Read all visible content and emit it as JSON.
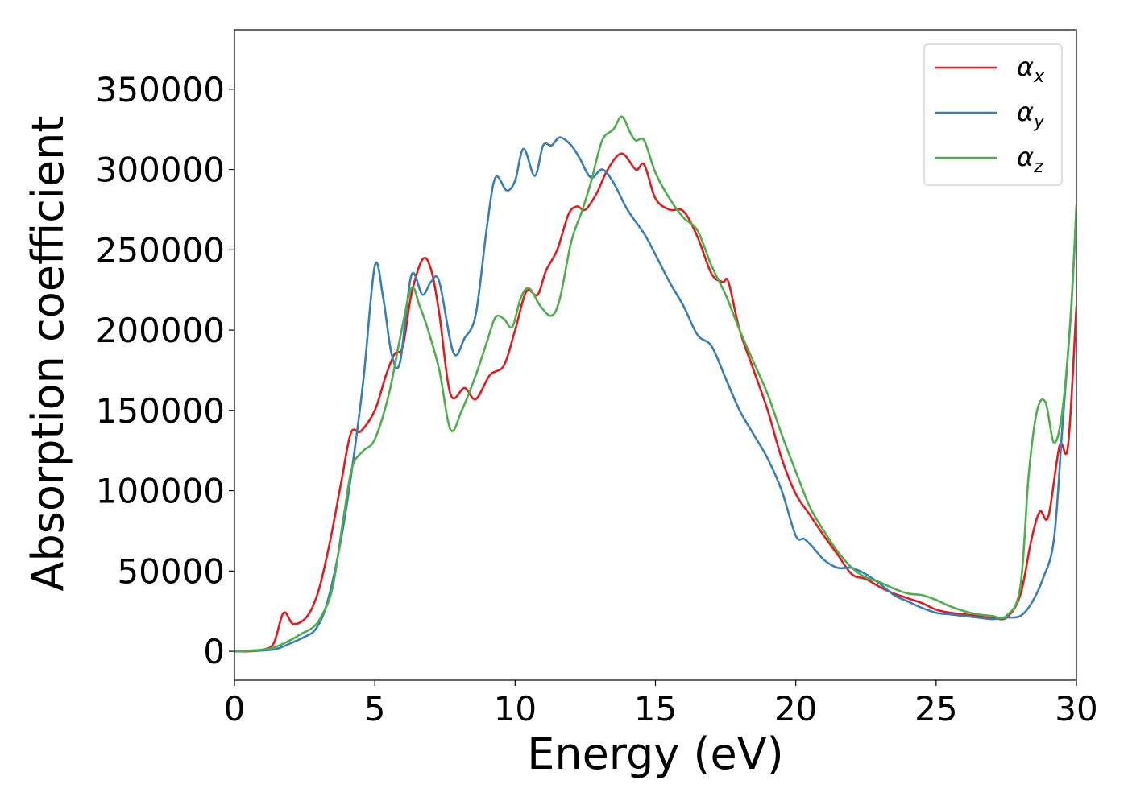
{
  "chart_data": {
    "type": "line",
    "title": "",
    "xlabel": "Energy (eV)",
    "ylabel": "Absorption coefficient",
    "xlim": [
      0,
      30
    ],
    "ylim": [
      -18000,
      387000
    ],
    "xticks": [
      0,
      5,
      10,
      15,
      20,
      25,
      30
    ],
    "yticks": [
      0,
      50000,
      100000,
      150000,
      200000,
      250000,
      300000,
      350000
    ],
    "grid": false,
    "legend_position": "top-right",
    "colors": {
      "alpha_x": "#e41a1c",
      "alpha_y": "#377eb8",
      "alpha_z": "#4daf4a"
    },
    "legend": [
      {
        "key": "alpha_x",
        "symbol": "α",
        "subscript": "x"
      },
      {
        "key": "alpha_y",
        "symbol": "α",
        "subscript": "y"
      },
      {
        "key": "alpha_z",
        "symbol": "α",
        "subscript": "z"
      }
    ],
    "series": [
      {
        "key": "alpha_x",
        "name": "αx",
        "points": [
          [
            0,
            0
          ],
          [
            0.5,
            0
          ],
          [
            1,
            1000
          ],
          [
            1.4,
            5000
          ],
          [
            1.75,
            24000
          ],
          [
            2.1,
            17000
          ],
          [
            2.6,
            22000
          ],
          [
            3,
            38000
          ],
          [
            3.4,
            68000
          ],
          [
            3.8,
            105000
          ],
          [
            4.15,
            136000
          ],
          [
            4.5,
            137000
          ],
          [
            5.0,
            150000
          ],
          [
            5.4,
            172000
          ],
          [
            5.7,
            185000
          ],
          [
            6.0,
            190000
          ],
          [
            6.3,
            222000
          ],
          [
            6.7,
            244000
          ],
          [
            7.0,
            238000
          ],
          [
            7.3,
            210000
          ],
          [
            7.7,
            160000
          ],
          [
            8.2,
            164000
          ],
          [
            8.6,
            157000
          ],
          [
            9.1,
            172000
          ],
          [
            9.6,
            178000
          ],
          [
            10.0,
            200000
          ],
          [
            10.4,
            224000
          ],
          [
            10.8,
            222000
          ],
          [
            11.1,
            237000
          ],
          [
            11.5,
            250000
          ],
          [
            11.9,
            272000
          ],
          [
            12.2,
            277000
          ],
          [
            12.5,
            275000
          ],
          [
            12.9,
            285000
          ],
          [
            13.3,
            300000
          ],
          [
            13.8,
            310000
          ],
          [
            14.3,
            300000
          ],
          [
            14.6,
            303000
          ],
          [
            15.0,
            282000
          ],
          [
            15.5,
            275000
          ],
          [
            16.0,
            274000
          ],
          [
            16.5,
            258000
          ],
          [
            17.0,
            235000
          ],
          [
            17.4,
            230000
          ],
          [
            17.6,
            230000
          ],
          [
            18.0,
            200000
          ],
          [
            18.5,
            175000
          ],
          [
            19.0,
            150000
          ],
          [
            19.5,
            120000
          ],
          [
            20.0,
            98000
          ],
          [
            20.5,
            85000
          ],
          [
            21.0,
            72000
          ],
          [
            21.5,
            60000
          ],
          [
            22.0,
            48000
          ],
          [
            22.5,
            45000
          ],
          [
            23.0,
            40000
          ],
          [
            23.5,
            36000
          ],
          [
            24.0,
            33000
          ],
          [
            24.5,
            30000
          ],
          [
            25.0,
            26000
          ],
          [
            25.5,
            24000
          ],
          [
            26.0,
            23000
          ],
          [
            26.5,
            22000
          ],
          [
            27.0,
            21000
          ],
          [
            27.5,
            21000
          ],
          [
            28.0,
            35000
          ],
          [
            28.4,
            70000
          ],
          [
            28.7,
            87000
          ],
          [
            29.0,
            84000
          ],
          [
            29.4,
            128000
          ],
          [
            29.7,
            128000
          ],
          [
            30,
            215000
          ]
        ]
      },
      {
        "key": "alpha_y",
        "name": "αy",
        "points": [
          [
            0,
            0
          ],
          [
            1,
            500
          ],
          [
            1.5,
            1500
          ],
          [
            2,
            5000
          ],
          [
            2.5,
            9000
          ],
          [
            2.9,
            14000
          ],
          [
            3.3,
            30000
          ],
          [
            3.8,
            70000
          ],
          [
            4.2,
            115000
          ],
          [
            4.6,
            170000
          ],
          [
            5.0,
            240000
          ],
          [
            5.3,
            220000
          ],
          [
            5.6,
            185000
          ],
          [
            5.9,
            180000
          ],
          [
            6.3,
            234000
          ],
          [
            6.7,
            222000
          ],
          [
            7.0,
            230000
          ],
          [
            7.3,
            230000
          ],
          [
            7.8,
            186000
          ],
          [
            8.2,
            195000
          ],
          [
            8.6,
            210000
          ],
          [
            9.0,
            265000
          ],
          [
            9.3,
            295000
          ],
          [
            9.7,
            287000
          ],
          [
            10.0,
            293000
          ],
          [
            10.3,
            313000
          ],
          [
            10.7,
            296000
          ],
          [
            11.0,
            315000
          ],
          [
            11.3,
            315000
          ],
          [
            11.6,
            320000
          ],
          [
            12.0,
            315000
          ],
          [
            12.3,
            307000
          ],
          [
            12.7,
            295000
          ],
          [
            13.1,
            300000
          ],
          [
            13.5,
            292000
          ],
          [
            14.0,
            275000
          ],
          [
            14.6,
            260000
          ],
          [
            15.0,
            247000
          ],
          [
            15.5,
            230000
          ],
          [
            16.0,
            215000
          ],
          [
            16.5,
            197000
          ],
          [
            17.0,
            190000
          ],
          [
            17.5,
            170000
          ],
          [
            18.0,
            150000
          ],
          [
            18.5,
            135000
          ],
          [
            19.0,
            120000
          ],
          [
            19.5,
            100000
          ],
          [
            20.0,
            72000
          ],
          [
            20.3,
            70000
          ],
          [
            20.6,
            65000
          ],
          [
            21.0,
            57000
          ],
          [
            21.5,
            52000
          ],
          [
            22.0,
            52000
          ],
          [
            22.5,
            48000
          ],
          [
            23.0,
            42000
          ],
          [
            23.5,
            35000
          ],
          [
            24.0,
            31000
          ],
          [
            24.5,
            27000
          ],
          [
            25.0,
            24000
          ],
          [
            25.5,
            23000
          ],
          [
            26.0,
            22000
          ],
          [
            26.5,
            21000
          ],
          [
            27.0,
            20000
          ],
          [
            27.5,
            21000
          ],
          [
            28.0,
            22000
          ],
          [
            28.4,
            30000
          ],
          [
            28.8,
            45000
          ],
          [
            29.2,
            70000
          ],
          [
            29.5,
            140000
          ],
          [
            29.8,
            210000
          ],
          [
            30,
            275000
          ]
        ]
      },
      {
        "key": "alpha_z",
        "name": "αz",
        "points": [
          [
            0,
            0
          ],
          [
            1,
            1000
          ],
          [
            1.5,
            3000
          ],
          [
            2,
            7000
          ],
          [
            2.4,
            11000
          ],
          [
            2.8,
            15000
          ],
          [
            3.1,
            22000
          ],
          [
            3.5,
            40000
          ],
          [
            3.9,
            85000
          ],
          [
            4.2,
            115000
          ],
          [
            4.6,
            125000
          ],
          [
            5.0,
            132000
          ],
          [
            5.5,
            160000
          ],
          [
            5.9,
            195000
          ],
          [
            6.3,
            226000
          ],
          [
            6.6,
            215000
          ],
          [
            6.9,
            200000
          ],
          [
            7.3,
            175000
          ],
          [
            7.7,
            138000
          ],
          [
            8.1,
            150000
          ],
          [
            8.6,
            172000
          ],
          [
            9.0,
            193000
          ],
          [
            9.3,
            208000
          ],
          [
            9.6,
            207000
          ],
          [
            9.9,
            202000
          ],
          [
            10.2,
            220000
          ],
          [
            10.5,
            226000
          ],
          [
            10.9,
            215000
          ],
          [
            11.3,
            209000
          ],
          [
            11.6,
            220000
          ],
          [
            12.0,
            255000
          ],
          [
            12.4,
            275000
          ],
          [
            12.7,
            292000
          ],
          [
            13.1,
            318000
          ],
          [
            13.5,
            325000
          ],
          [
            13.8,
            333000
          ],
          [
            14.1,
            323000
          ],
          [
            14.3,
            318000
          ],
          [
            14.6,
            318000
          ],
          [
            15.0,
            298000
          ],
          [
            15.5,
            282000
          ],
          [
            16.0,
            270000
          ],
          [
            16.5,
            262000
          ],
          [
            17.0,
            240000
          ],
          [
            17.5,
            222000
          ],
          [
            18.0,
            200000
          ],
          [
            18.5,
            180000
          ],
          [
            19.0,
            160000
          ],
          [
            19.5,
            135000
          ],
          [
            20.0,
            112000
          ],
          [
            20.5,
            90000
          ],
          [
            21.0,
            75000
          ],
          [
            21.5,
            62000
          ],
          [
            22.0,
            52000
          ],
          [
            22.5,
            46000
          ],
          [
            23.0,
            43000
          ],
          [
            23.5,
            39000
          ],
          [
            24.0,
            36000
          ],
          [
            24.5,
            35000
          ],
          [
            25.0,
            32000
          ],
          [
            25.5,
            28000
          ],
          [
            26.0,
            25000
          ],
          [
            26.5,
            23000
          ],
          [
            27.0,
            22000
          ],
          [
            27.5,
            22000
          ],
          [
            28.0,
            40000
          ],
          [
            28.3,
            110000
          ],
          [
            28.6,
            150000
          ],
          [
            28.9,
            155000
          ],
          [
            29.2,
            130000
          ],
          [
            29.5,
            150000
          ],
          [
            29.8,
            210000
          ],
          [
            30,
            278000
          ]
        ]
      }
    ]
  }
}
